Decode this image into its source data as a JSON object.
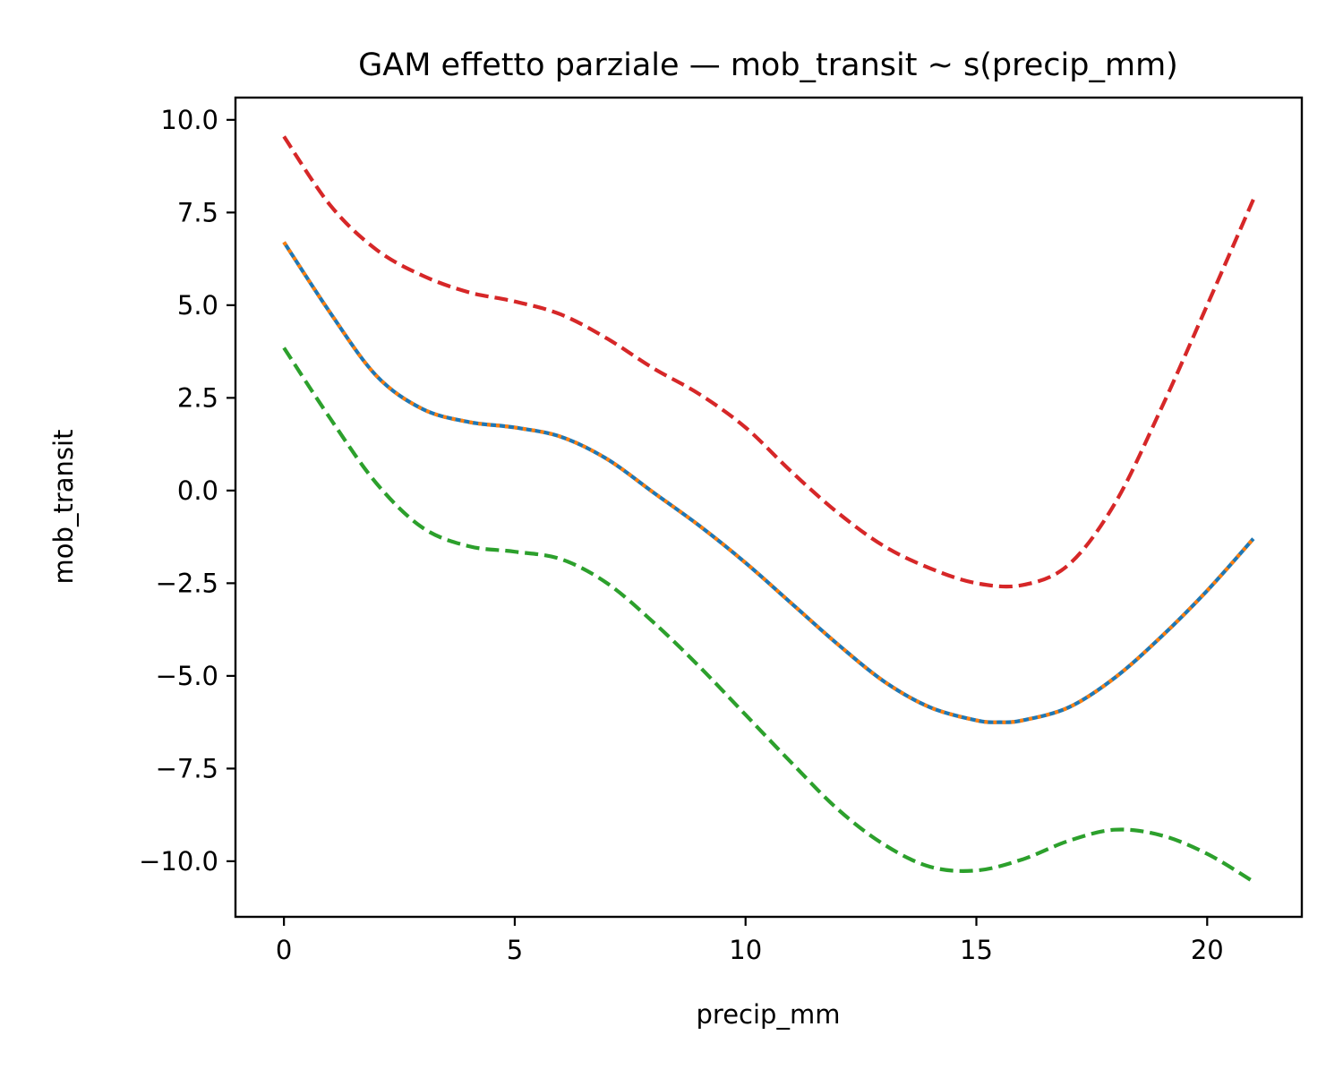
{
  "chart_data": {
    "type": "line",
    "title": "GAM effetto parziale — mob_transit ~ s(precip_mm)",
    "xlabel": "precip_mm",
    "ylabel": "mob_transit",
    "xlim": [
      -1.05,
      22.05
    ],
    "ylim": [
      -11.5,
      10.6
    ],
    "grid": false,
    "legend": "none",
    "x_ticks": [
      {
        "value": 0,
        "label": "0"
      },
      {
        "value": 5,
        "label": "5"
      },
      {
        "value": 10,
        "label": "10"
      },
      {
        "value": 15,
        "label": "15"
      },
      {
        "value": 20,
        "label": "20"
      }
    ],
    "y_ticks": [
      {
        "value": 10,
        "label": "10.0"
      },
      {
        "value": 7.5,
        "label": "7.5"
      },
      {
        "value": 5,
        "label": "5.0"
      },
      {
        "value": 2.5,
        "label": "2.5"
      },
      {
        "value": 0,
        "label": "0.0"
      },
      {
        "value": -2.5,
        "label": "−2.5"
      },
      {
        "value": -5,
        "label": "−5.0"
      },
      {
        "value": -7.5,
        "label": "−7.5"
      },
      {
        "value": -10,
        "label": "−10.0"
      }
    ],
    "series": [
      {
        "color": "#1f77b4",
        "style": "solid",
        "points": [
          [
            0,
            6.7
          ],
          [
            1,
            4.8
          ],
          [
            2,
            3.1
          ],
          [
            3,
            2.2
          ],
          [
            4,
            1.85
          ],
          [
            5,
            1.7
          ],
          [
            6,
            1.45
          ],
          [
            7,
            0.85
          ],
          [
            8,
            -0.05
          ],
          [
            9,
            -0.95
          ],
          [
            10,
            -1.95
          ],
          [
            11,
            -3.05
          ],
          [
            12,
            -4.15
          ],
          [
            13,
            -5.15
          ],
          [
            14,
            -5.85
          ],
          [
            15,
            -6.2
          ],
          [
            15.5,
            -6.25
          ],
          [
            16,
            -6.2
          ],
          [
            17,
            -5.85
          ],
          [
            18,
            -5.05
          ],
          [
            19,
            -3.95
          ],
          [
            20,
            -2.7
          ],
          [
            21,
            -1.3
          ]
        ]
      },
      {
        "color": "#ff7f0e",
        "style": "dotted",
        "points": [
          [
            0,
            6.7
          ],
          [
            1,
            4.8
          ],
          [
            2,
            3.1
          ],
          [
            3,
            2.2
          ],
          [
            4,
            1.85
          ],
          [
            5,
            1.7
          ],
          [
            6,
            1.45
          ],
          [
            7,
            0.85
          ],
          [
            8,
            -0.05
          ],
          [
            9,
            -0.95
          ],
          [
            10,
            -1.95
          ],
          [
            11,
            -3.05
          ],
          [
            12,
            -4.15
          ],
          [
            13,
            -5.15
          ],
          [
            14,
            -5.85
          ],
          [
            15,
            -6.2
          ],
          [
            15.5,
            -6.25
          ],
          [
            16,
            -6.2
          ],
          [
            17,
            -5.85
          ],
          [
            18,
            -5.05
          ],
          [
            19,
            -3.95
          ],
          [
            20,
            -2.7
          ],
          [
            21,
            -1.3
          ]
        ]
      },
      {
        "color": "#2ca02c",
        "style": "dashed",
        "points": [
          [
            0,
            3.85
          ],
          [
            1,
            1.95
          ],
          [
            2,
            0.2
          ],
          [
            3,
            -1.0
          ],
          [
            4,
            -1.5
          ],
          [
            5,
            -1.65
          ],
          [
            6,
            -1.85
          ],
          [
            7,
            -2.5
          ],
          [
            8,
            -3.55
          ],
          [
            9,
            -4.75
          ],
          [
            10,
            -6.05
          ],
          [
            11,
            -7.35
          ],
          [
            12,
            -8.6
          ],
          [
            13,
            -9.55
          ],
          [
            14,
            -10.15
          ],
          [
            15,
            -10.25
          ],
          [
            16,
            -9.95
          ],
          [
            17,
            -9.45
          ],
          [
            18,
            -9.15
          ],
          [
            19,
            -9.3
          ],
          [
            20,
            -9.8
          ],
          [
            21,
            -10.55
          ]
        ]
      },
      {
        "color": "#d62728",
        "style": "dashed",
        "points": [
          [
            0,
            9.55
          ],
          [
            1,
            7.7
          ],
          [
            2,
            6.5
          ],
          [
            3,
            5.8
          ],
          [
            4,
            5.35
          ],
          [
            5,
            5.1
          ],
          [
            6,
            4.75
          ],
          [
            7,
            4.1
          ],
          [
            8,
            3.3
          ],
          [
            9,
            2.6
          ],
          [
            10,
            1.7
          ],
          [
            11,
            0.5
          ],
          [
            12,
            -0.6
          ],
          [
            13,
            -1.5
          ],
          [
            14,
            -2.1
          ],
          [
            15,
            -2.5
          ],
          [
            16,
            -2.55
          ],
          [
            17,
            -2.0
          ],
          [
            18,
            -0.35
          ],
          [
            19,
            2.2
          ],
          [
            20,
            5.0
          ],
          [
            21,
            7.85
          ]
        ]
      }
    ]
  }
}
